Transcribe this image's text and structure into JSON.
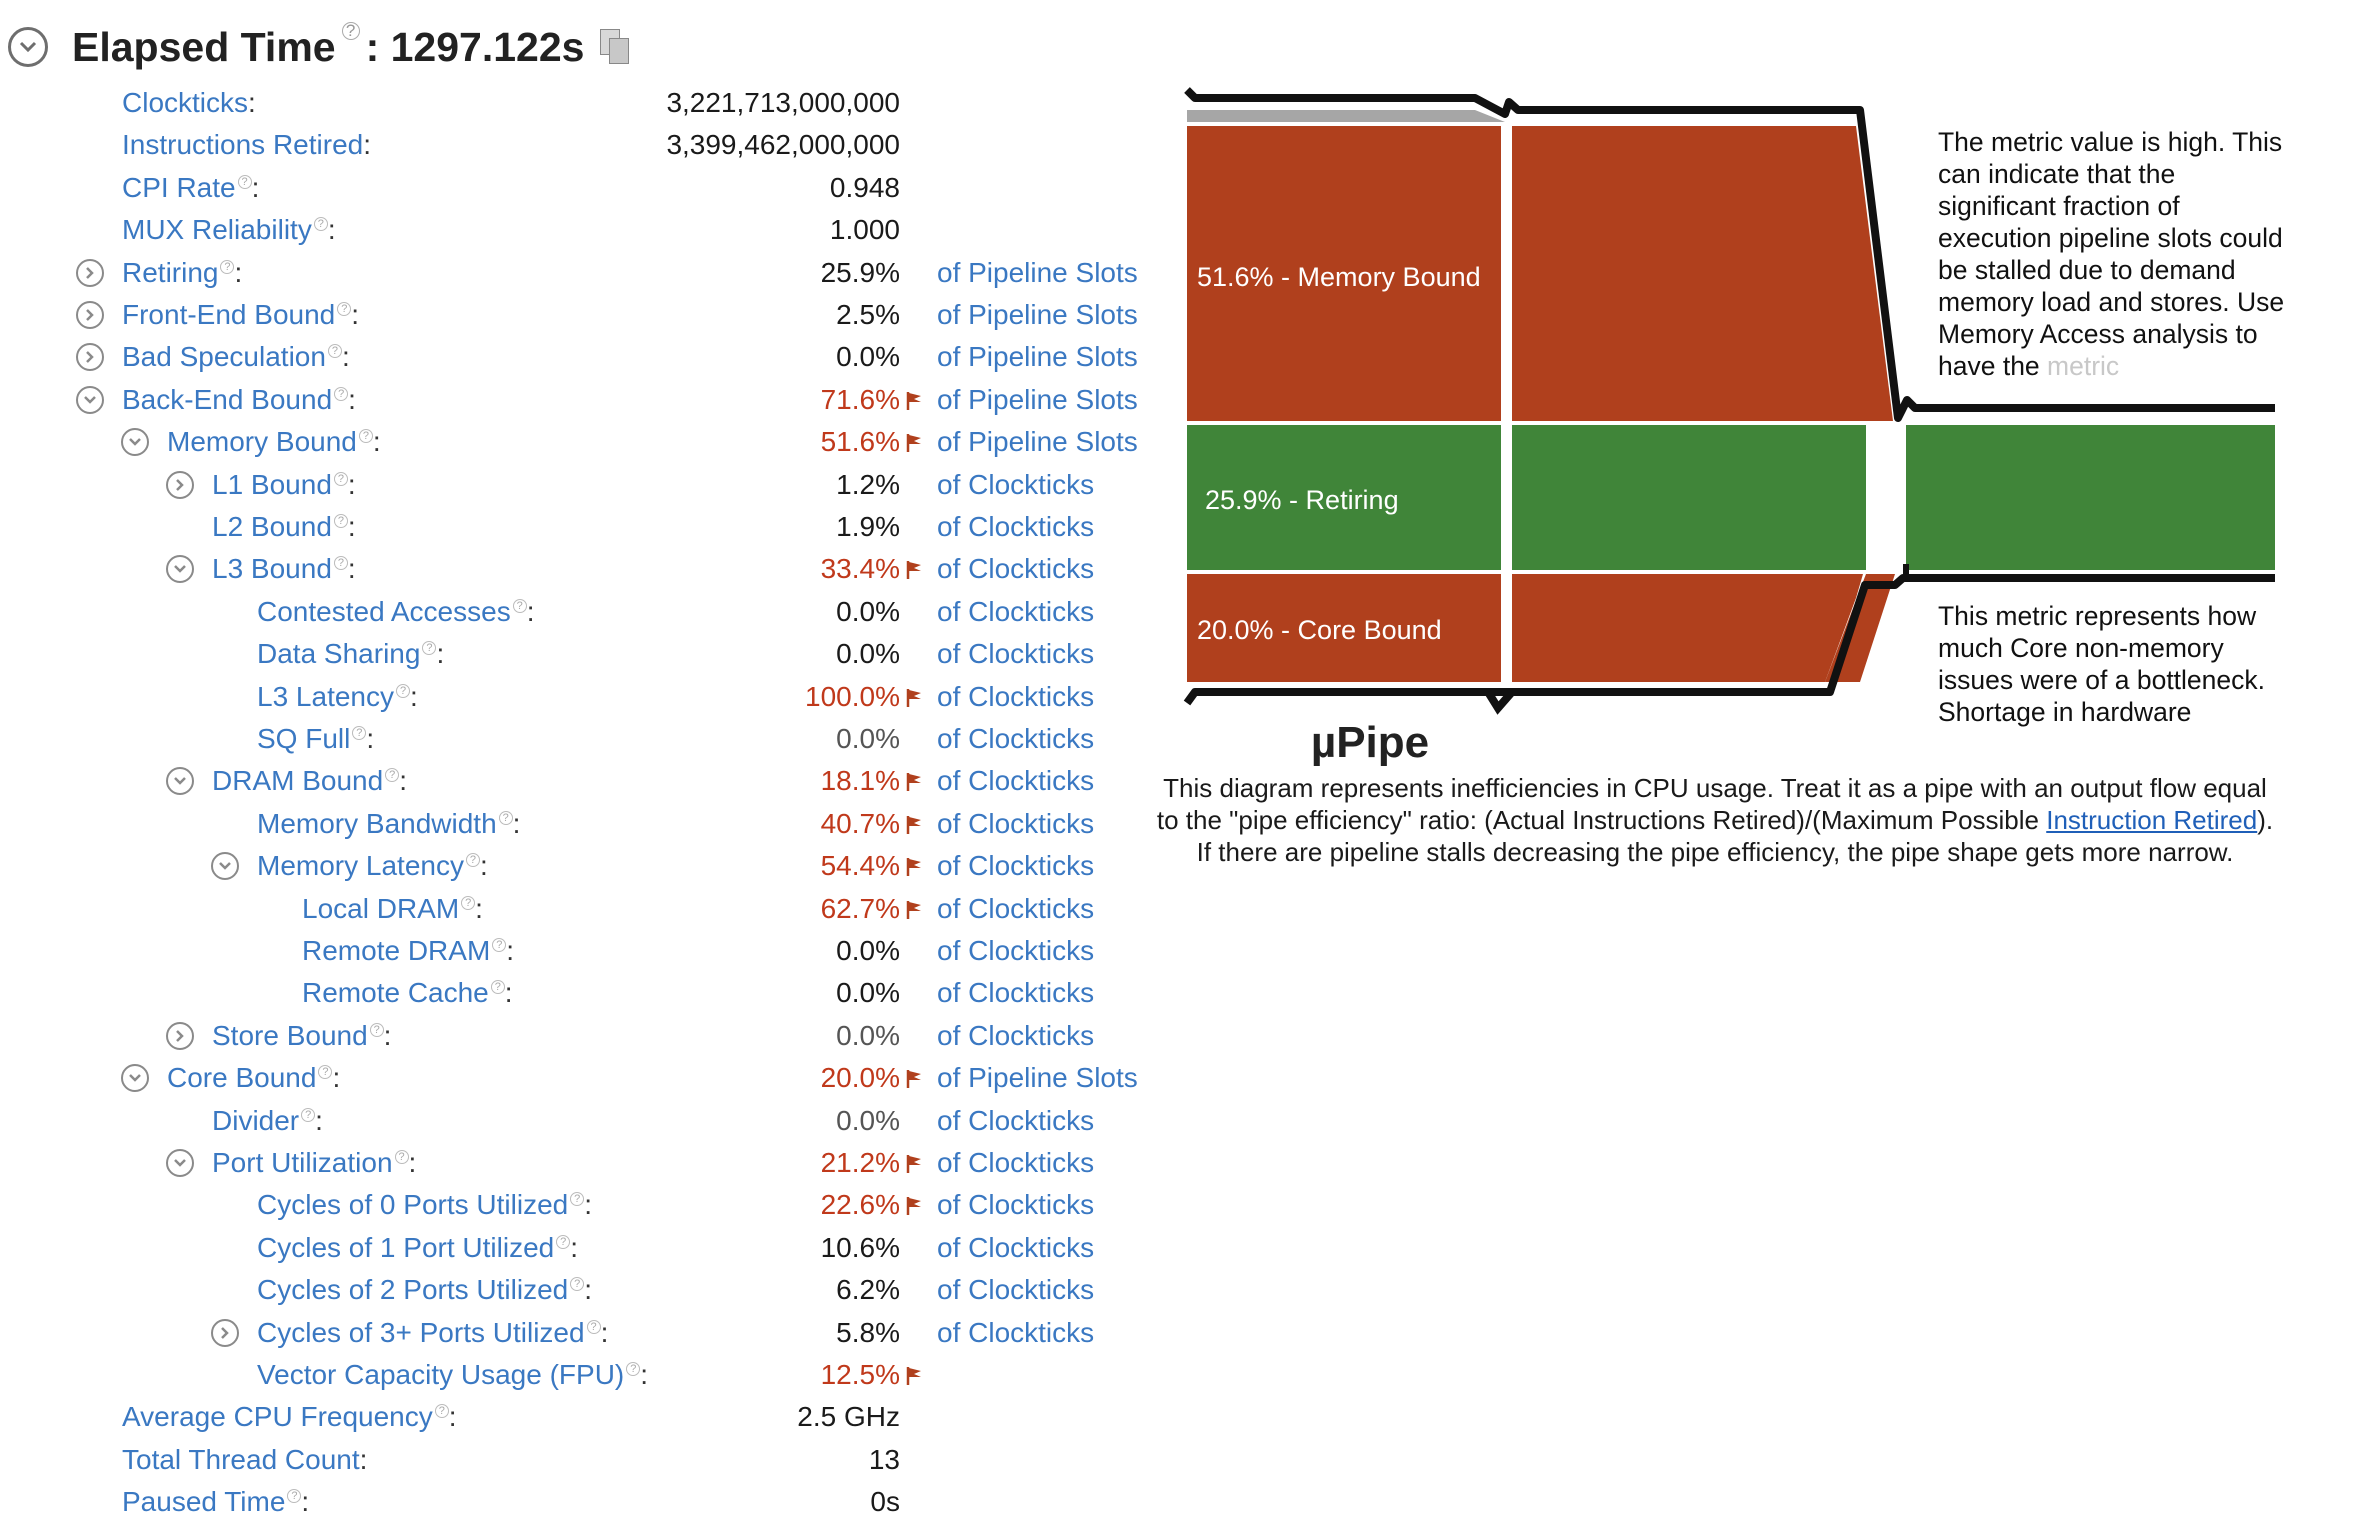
{
  "header": {
    "title": "Elapsed Time",
    "value": ": 1297.122s"
  },
  "metrics": [
    {
      "name": "Clockticks",
      "value": "3,221,713,000,000",
      "unit": "",
      "indent": 0,
      "toggle": "",
      "help": false,
      "flag": false,
      "color": "normal"
    },
    {
      "name": "Instructions Retired",
      "value": "3,399,462,000,000",
      "unit": "",
      "indent": 0,
      "toggle": "",
      "help": false,
      "flag": false,
      "color": "normal"
    },
    {
      "name": "CPI Rate",
      "value": "0.948",
      "unit": "",
      "indent": 0,
      "toggle": "",
      "help": true,
      "flag": false,
      "color": "normal"
    },
    {
      "name": "MUX Reliability",
      "value": "1.000",
      "unit": "",
      "indent": 0,
      "toggle": "",
      "help": true,
      "flag": false,
      "color": "normal"
    },
    {
      "name": "Retiring",
      "value": "25.9%",
      "unit": "of Pipeline Slots",
      "indent": 0,
      "toggle": "collapsed",
      "help": true,
      "flag": false,
      "color": "normal"
    },
    {
      "name": "Front-End Bound",
      "value": "2.5%",
      "unit": "of Pipeline Slots",
      "indent": 0,
      "toggle": "collapsed",
      "help": true,
      "flag": false,
      "color": "normal"
    },
    {
      "name": "Bad Speculation",
      "value": "0.0%",
      "unit": "of Pipeline Slots",
      "indent": 0,
      "toggle": "collapsed",
      "help": true,
      "flag": false,
      "color": "normal"
    },
    {
      "name": "Back-End Bound",
      "value": "71.6%",
      "unit": "of Pipeline Slots",
      "indent": 0,
      "toggle": "expanded",
      "help": true,
      "flag": true,
      "color": "red"
    },
    {
      "name": "Memory Bound",
      "value": "51.6%",
      "unit": "of Pipeline Slots",
      "indent": 1,
      "toggle": "expanded",
      "help": true,
      "flag": true,
      "color": "red"
    },
    {
      "name": "L1 Bound",
      "value": "1.2%",
      "unit": "of Clockticks",
      "indent": 2,
      "toggle": "collapsed",
      "help": true,
      "flag": false,
      "color": "normal"
    },
    {
      "name": "L2 Bound",
      "value": "1.9%",
      "unit": "of Clockticks",
      "indent": 2,
      "toggle": "",
      "help": true,
      "flag": false,
      "color": "normal"
    },
    {
      "name": "L3 Bound",
      "value": "33.4%",
      "unit": "of Clockticks",
      "indent": 2,
      "toggle": "expanded",
      "help": true,
      "flag": true,
      "color": "red"
    },
    {
      "name": "Contested Accesses",
      "value": "0.0%",
      "unit": "of Clockticks",
      "indent": 3,
      "toggle": "",
      "help": true,
      "flag": false,
      "color": "normal"
    },
    {
      "name": "Data Sharing",
      "value": "0.0%",
      "unit": "of Clockticks",
      "indent": 3,
      "toggle": "",
      "help": true,
      "flag": false,
      "color": "normal"
    },
    {
      "name": "L3 Latency",
      "value": "100.0%",
      "unit": "of Clockticks",
      "indent": 3,
      "toggle": "",
      "help": true,
      "flag": true,
      "color": "red"
    },
    {
      "name": "SQ Full",
      "value": "0.0%",
      "unit": "of Clockticks",
      "indent": 3,
      "toggle": "",
      "help": true,
      "flag": false,
      "color": "gray"
    },
    {
      "name": "DRAM Bound",
      "value": "18.1%",
      "unit": "of Clockticks",
      "indent": 2,
      "toggle": "expanded",
      "help": true,
      "flag": true,
      "color": "red"
    },
    {
      "name": "Memory Bandwidth",
      "value": "40.7%",
      "unit": "of Clockticks",
      "indent": 3,
      "toggle": "",
      "help": true,
      "flag": true,
      "color": "red"
    },
    {
      "name": "Memory Latency",
      "value": "54.4%",
      "unit": "of Clockticks",
      "indent": 3,
      "toggle": "expanded",
      "help": true,
      "flag": true,
      "color": "red"
    },
    {
      "name": "Local DRAM",
      "value": "62.7%",
      "unit": "of Clockticks",
      "indent": 4,
      "toggle": "",
      "help": true,
      "flag": true,
      "color": "red"
    },
    {
      "name": "Remote DRAM",
      "value": "0.0%",
      "unit": "of Clockticks",
      "indent": 4,
      "toggle": "",
      "help": true,
      "flag": false,
      "color": "normal"
    },
    {
      "name": "Remote Cache",
      "value": "0.0%",
      "unit": "of Clockticks",
      "indent": 4,
      "toggle": "",
      "help": true,
      "flag": false,
      "color": "normal"
    },
    {
      "name": "Store Bound",
      "value": "0.0%",
      "unit": "of Clockticks",
      "indent": 2,
      "toggle": "collapsed",
      "help": true,
      "flag": false,
      "color": "gray"
    },
    {
      "name": "Core Bound",
      "value": "20.0%",
      "unit": "of Pipeline Slots",
      "indent": 1,
      "toggle": "expanded",
      "help": true,
      "flag": true,
      "color": "red"
    },
    {
      "name": "Divider",
      "value": "0.0%",
      "unit": "of Clockticks",
      "indent": 2,
      "toggle": "",
      "help": true,
      "flag": false,
      "color": "gray"
    },
    {
      "name": "Port Utilization",
      "value": "21.2%",
      "unit": "of Clockticks",
      "indent": 2,
      "toggle": "expanded",
      "help": true,
      "flag": true,
      "color": "red"
    },
    {
      "name": "Cycles of 0 Ports Utilized",
      "value": "22.6%",
      "unit": "of Clockticks",
      "indent": 3,
      "toggle": "",
      "help": true,
      "flag": true,
      "color": "red"
    },
    {
      "name": "Cycles of 1 Port Utilized",
      "value": "10.6%",
      "unit": "of Clockticks",
      "indent": 3,
      "toggle": "",
      "help": true,
      "flag": false,
      "color": "normal"
    },
    {
      "name": "Cycles of 2 Ports Utilized",
      "value": "6.2%",
      "unit": "of Clockticks",
      "indent": 3,
      "toggle": "",
      "help": true,
      "flag": false,
      "color": "normal"
    },
    {
      "name": "Cycles of 3+ Ports Utilized",
      "value": "5.8%",
      "unit": "of Clockticks",
      "indent": 3,
      "toggle": "collapsed",
      "help": true,
      "flag": false,
      "color": "normal"
    },
    {
      "name": "Vector Capacity Usage (FPU)",
      "value": "12.5%",
      "unit": "",
      "indent": 3,
      "toggle": "",
      "help": true,
      "flag": true,
      "color": "red"
    },
    {
      "name": "Average CPU Frequency",
      "value": "2.5 GHz",
      "unit": "",
      "indent": 0,
      "toggle": "",
      "help": true,
      "flag": false,
      "color": "normal"
    },
    {
      "name": "Total Thread Count",
      "value": "13",
      "unit": "",
      "indent": 0,
      "toggle": "",
      "help": false,
      "flag": false,
      "color": "normal"
    },
    {
      "name": "Paused Time",
      "value": "0s",
      "unit": "",
      "indent": 0,
      "toggle": "",
      "help": true,
      "flag": false,
      "color": "normal"
    }
  ],
  "pipe": {
    "labels": {
      "memory": "51.6% - Memory Bound",
      "retiring": "25.9% - Retiring",
      "core": "20.0% - Core Bound"
    },
    "title": "µPipe",
    "desc_before": "This diagram represents inefficiencies in CPU usage. Treat it as a pipe with an output flow equal to the \"pipe efficiency\" ratio: (Actual Instructions Retired)/(Maximum Possible ",
    "desc_link": "Instruction Retired",
    "desc_after": "). If there are pipeline stalls decreasing the pipe efficiency, the pipe shape gets more narrow.",
    "tip_top": "The metric value is high. This can indicate that the significant fraction of execution pipeline slots could be stalled due to demand memory load and stores. Use Memory Access analysis to have the ",
    "tip_top_fade": "metric",
    "tip_bottom": "This metric represents how much Core non-memory issues were of a bottleneck. Shortage in hardware",
    "colors": {
      "bound": "#b0401d",
      "retiring": "#408539",
      "bad": "#a6a6a6",
      "outline": "#111111"
    }
  }
}
